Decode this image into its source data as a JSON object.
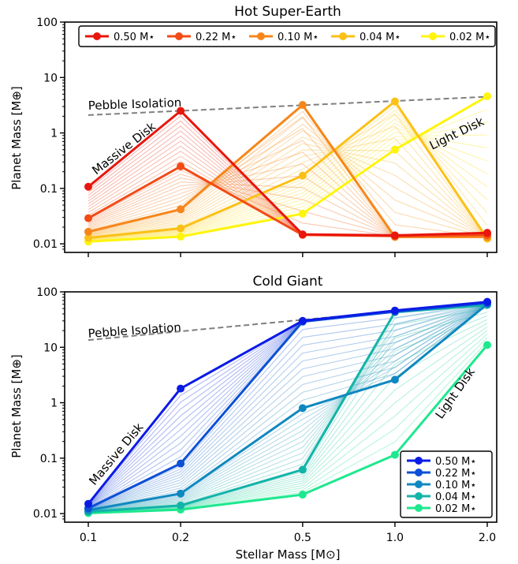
{
  "figure": {
    "xlabel": "Stellar Mass [M⊙]",
    "ylabel": "Planet Mass [M⊕]"
  },
  "chart_data": [
    {
      "type": "line",
      "title": "Hot Super-Earth",
      "xscale": "log",
      "yscale": "log",
      "x": [
        0.1,
        0.2,
        0.5,
        1.0,
        2.0
      ],
      "xticklabels": [
        "0.1",
        "0.2",
        "0.5",
        "1.0",
        "2.0"
      ],
      "ylim": [
        0.007,
        100
      ],
      "yticks": [
        0.01,
        0.1,
        1,
        10,
        100
      ],
      "yticklabels": [
        "0.01",
        "0.1",
        "1",
        "10",
        "100"
      ],
      "legend_position": "top",
      "series": [
        {
          "name": "0.50 M⋆",
          "color": "#e8160c",
          "values": [
            0.107,
            2.5,
            0.0148,
            0.0142,
            0.0158
          ]
        },
        {
          "name": "0.22 M⋆",
          "color": "#f24b16",
          "values": [
            0.029,
            0.25,
            0.0145,
            0.0138,
            0.0145
          ]
        },
        {
          "name": "0.10 M⋆",
          "color": "#f7861a",
          "values": [
            0.0165,
            0.042,
            3.2,
            0.0133,
            0.0133
          ]
        },
        {
          "name": "0.04 M⋆",
          "color": "#fcc016",
          "values": [
            0.0128,
            0.019,
            0.17,
            3.7,
            0.0124
          ]
        },
        {
          "name": "0.02 M⋆",
          "color": "#fff40c",
          "values": [
            0.011,
            0.0135,
            0.035,
            0.5,
            4.6
          ]
        }
      ],
      "fill_colors": [
        "#e8160c",
        "#fff40c"
      ],
      "annotations": {
        "pebble_line": {
          "label": "Pebble Isolation",
          "x": [
            0.1,
            2.0
          ],
          "y": [
            2.1,
            4.5
          ],
          "color": "#7f7f7f"
        },
        "massive_label": {
          "text": "Massive Disk",
          "color": "#e8160c"
        },
        "light_label": {
          "text": "Light Disk",
          "color": "#fcc016"
        }
      }
    },
    {
      "type": "line",
      "title": "Cold Giant",
      "xscale": "log",
      "yscale": "log",
      "x": [
        0.1,
        0.2,
        0.5,
        1.0,
        2.0
      ],
      "xticklabels": [
        "0.1",
        "0.2",
        "0.5",
        "1.0",
        "2.0"
      ],
      "ylim": [
        0.007,
        100
      ],
      "yticks": [
        0.01,
        0.1,
        1,
        10,
        100
      ],
      "yticklabels": [
        "0.01",
        "0.1",
        "1",
        "10",
        "100"
      ],
      "legend_position": "lower right",
      "series": [
        {
          "name": "0.50 M⋆",
          "color": "#0a1be6",
          "values": [
            0.015,
            1.8,
            30,
            46,
            66
          ]
        },
        {
          "name": "0.22 M⋆",
          "color": "#0c50d6",
          "values": [
            0.0125,
            0.08,
            29,
            44,
            63
          ]
        },
        {
          "name": "0.10 M⋆",
          "color": "#0f88c0",
          "values": [
            0.0115,
            0.023,
            0.8,
            2.6,
            60
          ]
        },
        {
          "name": "0.04 M⋆",
          "color": "#12b4a8",
          "values": [
            0.0108,
            0.014,
            0.062,
            43,
            58
          ]
        },
        {
          "name": "0.02 M⋆",
          "color": "#1de88e",
          "values": [
            0.0102,
            0.0118,
            0.022,
            0.115,
            11
          ]
        }
      ],
      "fill_colors": [
        "#0a1be6",
        "#1de88e"
      ],
      "annotations": {
        "pebble_line": {
          "label": "Pebble Isolation",
          "x": [
            0.1,
            1.0
          ],
          "y": [
            13.5,
            45
          ],
          "color": "#7f7f7f"
        },
        "massive_label": {
          "text": "Massive Disk",
          "color": "#0a1be6"
        },
        "light_label": {
          "text": "Light Disk",
          "color": "#1de88e"
        }
      }
    }
  ]
}
